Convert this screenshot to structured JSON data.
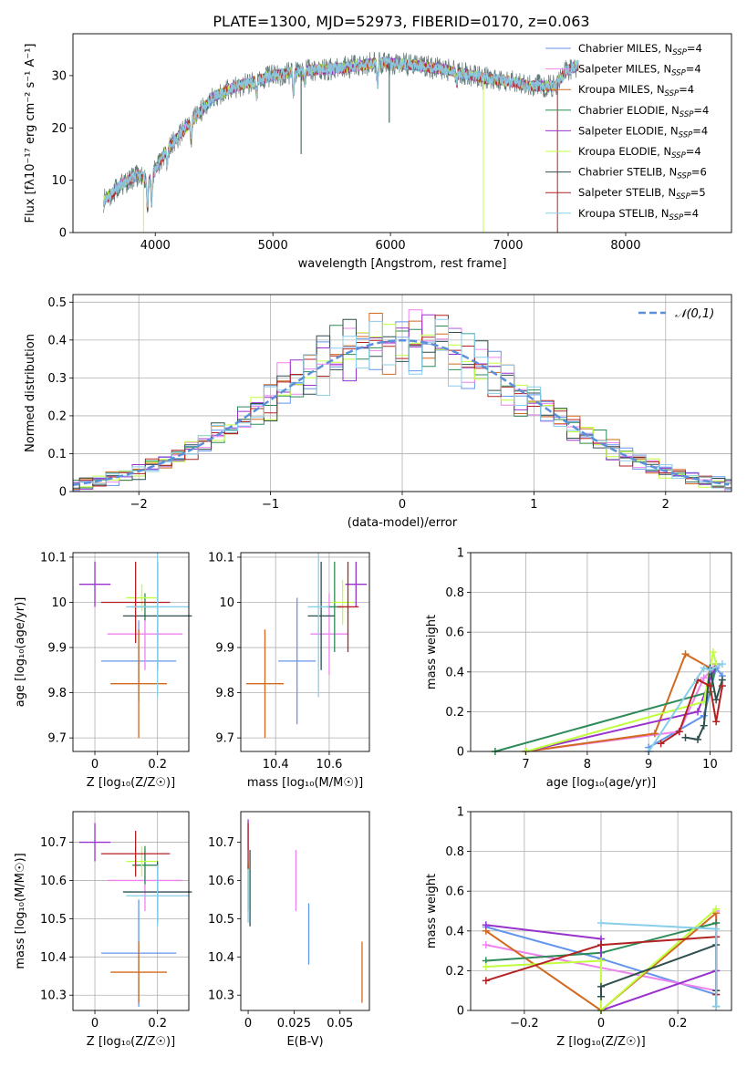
{
  "title": "PLATE=1300, MJD=52973, FIBERID=0170, z=0.063",
  "series_colors": [
    "#6495ed",
    "#ee82ee",
    "#d2691e",
    "#2e8b57",
    "#9932cc",
    "#c0ff3e",
    "#2f4f4f",
    "#b22222",
    "#87ceeb"
  ],
  "chart_data": [
    {
      "panel": "spectrum",
      "type": "line",
      "xlabel": "wavelength [Angstrom, rest frame]",
      "ylabel": "Flux [fλ10⁻¹⁷ erg cm⁻² s⁻¹ A⁻¹]",
      "xlim": [
        3300,
        8900
      ],
      "ylim": [
        0,
        38
      ],
      "xticks": [
        4000,
        5000,
        6000,
        7000,
        8000
      ],
      "yticks": [
        0,
        10,
        20,
        30
      ],
      "grid": false,
      "legend_position": "right",
      "legend": [
        {
          "name": "Chabrier MILES, N",
          "sub": "SSP",
          "suffix": "=4"
        },
        {
          "name": "Salpeter MILES, N",
          "sub": "SSP",
          "suffix": "=4"
        },
        {
          "name": "Kroupa MILES, N",
          "sub": "SSP",
          "suffix": "=4"
        },
        {
          "name": "Chabrier ELODIE, N",
          "sub": "SSP",
          "suffix": "=4"
        },
        {
          "name": "Salpeter ELODIE, N",
          "sub": "SSP",
          "suffix": "=4"
        },
        {
          "name": "Kroupa ELODIE, N",
          "sub": "SSP",
          "suffix": "=4"
        },
        {
          "name": "Chabrier STELIB, N",
          "sub": "SSP",
          "suffix": "=6"
        },
        {
          "name": "Salpeter STELIB, N",
          "sub": "SSP",
          "suffix": "=5"
        },
        {
          "name": "Kroupa STELIB, N",
          "sub": "SSP",
          "suffix": "=4"
        }
      ],
      "continuum": {
        "x": [
          3560,
          3700,
          3850,
          3950,
          4100,
          4300,
          4500,
          4700,
          5000,
          5300,
          5600,
          5900,
          6200,
          6500,
          6800,
          7000,
          7200,
          7400,
          7500,
          7600
        ],
        "y": [
          6,
          9,
          11,
          10,
          16,
          21,
          26,
          28,
          30,
          31,
          31.5,
          32.5,
          32,
          31,
          29.5,
          29,
          28,
          28,
          31,
          32
        ]
      },
      "lines": [
        {
          "x": 3934,
          "depth": 6
        },
        {
          "x": 3969,
          "depth": 5
        },
        {
          "x": 4102,
          "depth": 3
        },
        {
          "x": 4305,
          "depth": 4
        },
        {
          "x": 4861,
          "depth": 3
        },
        {
          "x": 5175,
          "depth": 4
        },
        {
          "x": 5270,
          "depth": 2
        },
        {
          "x": 5890,
          "depth": 4
        },
        {
          "x": 6563,
          "depth": 2
        }
      ],
      "spikes": [
        {
          "x": 5240,
          "y": 15
        },
        {
          "x": 5990,
          "y": 21
        },
        {
          "x": 3900,
          "y": 0
        },
        {
          "x": 6790,
          "y": 0
        },
        {
          "x": 7420,
          "y": 0
        }
      ]
    },
    {
      "panel": "residual-histogram",
      "type": "histogram",
      "xlabel": "(data-model)/error",
      "ylabel": "Normed distribution",
      "xlim": [
        -2.5,
        2.5
      ],
      "ylim": [
        0,
        0.52
      ],
      "xticks": [
        -2,
        -1,
        0,
        1,
        2
      ],
      "yticks": [
        0,
        0.1,
        0.2,
        0.3,
        0.4,
        0.5
      ],
      "grid": true,
      "bin_width": 0.1,
      "legend_position": "top-right",
      "legend": [
        "𝒩(0,1)"
      ],
      "reference_curve": "gaussian(0,1)",
      "jitter": [
        0.02,
        -0.03,
        0.04,
        -0.02,
        0.05,
        -0.04,
        0.01,
        0.03,
        -0.05,
        0.02
      ]
    },
    {
      "panel": "age-vs-Z",
      "type": "errorbar",
      "xlabel": "Z [log₁₀(Z/Z☉)]",
      "ylabel": "age  [log₁₀(age/yr)]",
      "xlim": [
        -0.07,
        0.3
      ],
      "ylim": [
        9.67,
        10.11
      ],
      "xticks": [
        0.0,
        0.2
      ],
      "yticks": [
        9.7,
        9.8,
        9.9,
        10.0,
        10.1
      ],
      "grid": true,
      "points": [
        {
          "x": 0.14,
          "xerr": 0.12,
          "y": 9.87,
          "yerr": 0.09
        },
        {
          "x": 0.16,
          "xerr": 0.12,
          "y": 9.93,
          "yerr": 0.08
        },
        {
          "x": 0.14,
          "xerr": 0.09,
          "y": 9.82,
          "yerr": 0.12
        },
        {
          "x": 0.16,
          "xerr": 0.04,
          "y": 9.99,
          "yerr": 0.03
        },
        {
          "x": 0.0,
          "xerr": 0.05,
          "y": 10.04,
          "yerr": 0.05
        },
        {
          "x": 0.15,
          "xerr": 0.05,
          "y": 10.01,
          "yerr": 0.03
        },
        {
          "x": 0.2,
          "xerr": 0.11,
          "y": 9.97,
          "yerr": 0.12
        },
        {
          "x": 0.13,
          "xerr": 0.11,
          "y": 10.0,
          "yerr": 0.09
        },
        {
          "x": 0.2,
          "xerr": 0.1,
          "y": 9.99,
          "yerr": 0.2
        }
      ]
    },
    {
      "panel": "age-vs-mass",
      "type": "errorbar",
      "xlabel": "mass [log₁₀(M/M☉)]",
      "ylabel": "",
      "xlim": [
        10.27,
        10.75
      ],
      "ylim": [
        9.67,
        10.11
      ],
      "xticks": [
        10.4,
        10.6
      ],
      "yticks": [
        9.7,
        9.8,
        9.9,
        10.0,
        10.1
      ],
      "grid": true,
      "points": [
        {
          "x": 10.48,
          "xerr": 0.07,
          "y": 9.87,
          "yerr": 0.14
        },
        {
          "x": 10.6,
          "xerr": 0.07,
          "y": 9.93,
          "yerr": 0.09
        },
        {
          "x": 10.36,
          "xerr": 0.07,
          "y": 9.82,
          "yerr": 0.12
        },
        {
          "x": 10.62,
          "xerr": 0.03,
          "y": 9.99,
          "yerr": 0.1
        },
        {
          "x": 10.7,
          "xerr": 0.04,
          "y": 10.04,
          "yerr": 0.05
        },
        {
          "x": 10.65,
          "xerr": 0.04,
          "y": 10.0,
          "yerr": 0.05
        },
        {
          "x": 10.57,
          "xerr": 0.05,
          "y": 9.97,
          "yerr": 0.12
        },
        {
          "x": 10.67,
          "xerr": 0.04,
          "y": 9.99,
          "yerr": 0.1
        },
        {
          "x": 10.56,
          "xerr": 0.04,
          "y": 9.99,
          "yerr": 0.2
        }
      ]
    },
    {
      "panel": "weight-vs-age",
      "type": "line",
      "xlabel": "age  [log₁₀(age/yr)]",
      "ylabel": "mass weight",
      "xlim": [
        6.1,
        10.35
      ],
      "ylim": [
        0,
        1
      ],
      "xticks": [
        7,
        8,
        9,
        10
      ],
      "yticks": [
        0.0,
        0.2,
        0.4,
        0.6,
        0.8,
        1.0
      ],
      "grid": true,
      "series": [
        {
          "x": [
            9.0,
            9.9,
            10.1,
            10.2
          ],
          "y": [
            0.02,
            0.18,
            0.42,
            0.38
          ]
        },
        {
          "x": [
            7.0,
            9.5,
            9.9,
            10.1
          ],
          "y": [
            0.0,
            0.1,
            0.37,
            0.43
          ]
        },
        {
          "x": [
            7.0,
            9.1,
            9.6,
            10.0
          ],
          "y": [
            0.0,
            0.09,
            0.49,
            0.42
          ]
        },
        {
          "x": [
            6.5,
            10.0,
            10.1
          ],
          "y": [
            0.0,
            0.3,
            0.44
          ]
        },
        {
          "x": [
            7.0,
            9.8,
            10.1
          ],
          "y": [
            0.0,
            0.2,
            0.44
          ]
        },
        {
          "x": [
            7.0,
            9.9,
            10.05,
            10.1
          ],
          "y": [
            0.0,
            0.25,
            0.5,
            0.44
          ]
        },
        {
          "x": [
            9.6,
            9.8,
            9.9,
            10.0,
            10.1,
            10.2
          ],
          "y": [
            0.07,
            0.06,
            0.13,
            0.42,
            0.26,
            0.36
          ]
        },
        {
          "x": [
            9.2,
            9.5,
            9.8,
            10.0,
            10.1,
            10.2
          ],
          "y": [
            0.04,
            0.1,
            0.36,
            0.33,
            0.15,
            0.33
          ]
        },
        {
          "x": [
            9.0,
            9.9,
            10.0,
            10.2
          ],
          "y": [
            0.0,
            0.42,
            0.41,
            0.44
          ]
        }
      ]
    },
    {
      "panel": "mass-vs-Z",
      "type": "errorbar",
      "xlabel": "Z [log₁₀(Z/Z☉)]",
      "ylabel": "mass [log₁₀(M/M☉)]",
      "xlim": [
        -0.07,
        0.3
      ],
      "ylim": [
        10.26,
        10.78
      ],
      "xticks": [
        0.0,
        0.2
      ],
      "yticks": [
        10.3,
        10.4,
        10.5,
        10.6,
        10.7
      ],
      "grid": true,
      "points": [
        {
          "x": 0.14,
          "xerr": 0.12,
          "y": 10.41,
          "yerr": 0.14
        },
        {
          "x": 0.16,
          "xerr": 0.12,
          "y": 10.6,
          "yerr": 0.08
        },
        {
          "x": 0.14,
          "xerr": 0.09,
          "y": 10.36,
          "yerr": 0.08
        },
        {
          "x": 0.16,
          "xerr": 0.04,
          "y": 10.64,
          "yerr": 0.05
        },
        {
          "x": 0.0,
          "xerr": 0.05,
          "y": 10.7,
          "yerr": 0.05
        },
        {
          "x": 0.15,
          "xerr": 0.05,
          "y": 10.65,
          "yerr": 0.04
        },
        {
          "x": 0.2,
          "xerr": 0.11,
          "y": 10.57,
          "yerr": 0.08
        },
        {
          "x": 0.13,
          "xerr": 0.11,
          "y": 10.67,
          "yerr": 0.06
        },
        {
          "x": 0.2,
          "xerr": 0.1,
          "y": 10.56,
          "yerr": 0.08
        }
      ]
    },
    {
      "panel": "mass-vs-ebv",
      "type": "errorbar",
      "xlabel": "E(B-V)",
      "ylabel": "",
      "xlim": [
        -0.004,
        0.066
      ],
      "ylim": [
        10.26,
        10.78
      ],
      "xticks": [
        0.0,
        0.025,
        0.05
      ],
      "yticks": [
        10.3,
        10.4,
        10.5,
        10.6,
        10.7
      ],
      "grid": false,
      "points": [
        {
          "x": 0.033,
          "xerr": 0,
          "y": 10.46,
          "yerr": 0.08
        },
        {
          "x": 0.026,
          "xerr": 0,
          "y": 10.6,
          "yerr": 0.08
        },
        {
          "x": 0.062,
          "xerr": 0,
          "y": 10.36,
          "yerr": 0.08
        },
        {
          "x": 0.0,
          "xerr": 0,
          "y": 10.58,
          "yerr": 0.06
        },
        {
          "x": 0.0,
          "xerr": 0,
          "y": 10.72,
          "yerr": 0.04
        },
        {
          "x": 0.0,
          "xerr": 0,
          "y": 10.61,
          "yerr": 0.04
        },
        {
          "x": 0.001,
          "xerr": 0,
          "y": 10.58,
          "yerr": 0.1
        },
        {
          "x": 0.0,
          "xerr": 0,
          "y": 10.69,
          "yerr": 0.06
        },
        {
          "x": 0.0,
          "xerr": 0,
          "y": 10.56,
          "yerr": 0.07
        }
      ]
    },
    {
      "panel": "weight-vs-Z",
      "type": "line",
      "xlabel": "Z [log₁₀(Z/Z☉)]",
      "ylabel": "mass weight",
      "xlim": [
        -0.34,
        0.34
      ],
      "ylim": [
        0,
        1
      ],
      "xticks": [
        -0.2,
        0.0,
        0.2
      ],
      "yticks": [
        0.0,
        0.2,
        0.4,
        0.6,
        0.8,
        1.0
      ],
      "grid": true,
      "series": [
        {
          "x": [
            -0.3,
            0.0,
            0.3,
            0.3
          ],
          "y": [
            0.42,
            0.26,
            0.08,
            0.44
          ]
        },
        {
          "x": [
            -0.3,
            0.3,
            0.3
          ],
          "y": [
            0.33,
            0.1,
            0.5
          ]
        },
        {
          "x": [
            -0.3,
            0.0,
            0.3,
            0.3
          ],
          "y": [
            0.4,
            0.0,
            0.49,
            0.1
          ]
        },
        {
          "x": [
            -0.3,
            0.0,
            0.3
          ],
          "y": [
            0.25,
            0.29,
            0.44
          ]
        },
        {
          "x": [
            -0.3,
            0.0,
            0.0,
            0.3
          ],
          "y": [
            0.43,
            0.36,
            0.0,
            0.2
          ]
        },
        {
          "x": [
            -0.3,
            0.0,
            0.0,
            0.3
          ],
          "y": [
            0.22,
            0.25,
            0.0,
            0.51
          ]
        },
        {
          "x": [
            0.0,
            0.0,
            0.3,
            0.3,
            0.3
          ],
          "y": [
            0.07,
            0.12,
            0.33,
            0.02,
            0.1
          ]
        },
        {
          "x": [
            -0.3,
            0.0,
            0.3,
            0.3
          ],
          "y": [
            0.15,
            0.33,
            0.37,
            0.08
          ]
        },
        {
          "x": [
            0.0,
            0.3,
            0.3
          ],
          "y": [
            0.44,
            0.41,
            0.02
          ]
        }
      ]
    }
  ]
}
